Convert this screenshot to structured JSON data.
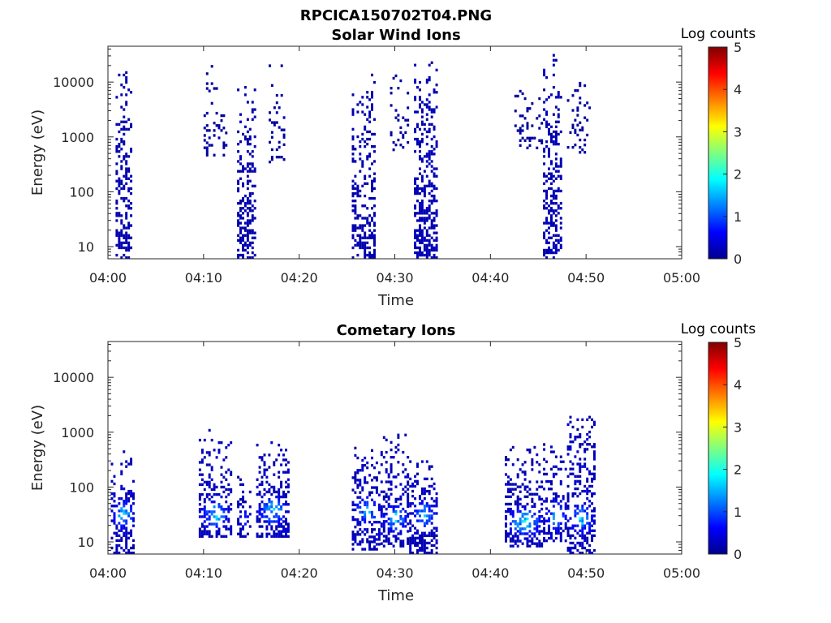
{
  "figure_title": "RPCICA150702T04.PNG",
  "colormap": "jet",
  "chart_data": [
    {
      "type": "heatmap",
      "title": "Solar Wind Ions",
      "xlabel": "Time",
      "ylabel": "Energy (eV)",
      "y_scale": "log",
      "ylim": [
        6,
        45000
      ],
      "xlim_minutes": [
        0,
        60
      ],
      "x_tick_labels": [
        "04:00",
        "04:10",
        "04:20",
        "04:30",
        "04:40",
        "04:50",
        "05:00"
      ],
      "y_tick_labels": [
        "10",
        "100",
        "1000",
        "10000"
      ],
      "colorbar": {
        "label": "Log counts",
        "range": [
          0,
          5
        ],
        "tick_labels": [
          "0",
          "1",
          "2",
          "3",
          "4",
          "5"
        ]
      },
      "bursts": [
        {
          "t_start_min": 0.8,
          "t_end_min": 2.5,
          "e_min": 6,
          "e_max": 15000,
          "peak_log_counts": 0.25,
          "density": 0.55
        },
        {
          "t_start_min": 10.0,
          "t_end_min": 12.3,
          "e_min": 400,
          "e_max": 22000,
          "peak_log_counts": 0.15,
          "density": 0.15
        },
        {
          "t_start_min": 13.5,
          "t_end_min": 15.3,
          "e_min": 6,
          "e_max": 10000,
          "peak_log_counts": 0.25,
          "density": 0.5
        },
        {
          "t_start_min": 16.8,
          "t_end_min": 18.5,
          "e_min": 300,
          "e_max": 20000,
          "peak_log_counts": 0.15,
          "density": 0.2
        },
        {
          "t_start_min": 25.5,
          "t_end_min": 28.0,
          "e_min": 6,
          "e_max": 14000,
          "peak_log_counts": 0.25,
          "density": 0.5
        },
        {
          "t_start_min": 29.5,
          "t_end_min": 31.5,
          "e_min": 500,
          "e_max": 16000,
          "peak_log_counts": 0.15,
          "density": 0.2
        },
        {
          "t_start_min": 32.0,
          "t_end_min": 34.5,
          "e_min": 6,
          "e_max": 28000,
          "peak_log_counts": 0.3,
          "density": 0.55
        },
        {
          "t_start_min": 42.5,
          "t_end_min": 45.5,
          "e_min": 600,
          "e_max": 10000,
          "peak_log_counts": 0.15,
          "density": 0.2
        },
        {
          "t_start_min": 45.5,
          "t_end_min": 47.5,
          "e_min": 6,
          "e_max": 32000,
          "peak_log_counts": 0.3,
          "density": 0.5
        },
        {
          "t_start_min": 48.0,
          "t_end_min": 50.5,
          "e_min": 500,
          "e_max": 11000,
          "peak_log_counts": 0.15,
          "density": 0.2
        }
      ]
    },
    {
      "type": "heatmap",
      "title": "Cometary Ions",
      "xlabel": "Time",
      "ylabel": "Energy (eV)",
      "y_scale": "log",
      "ylim": [
        6,
        45000
      ],
      "xlim_minutes": [
        0,
        60
      ],
      "x_tick_labels": [
        "04:00",
        "04:10",
        "04:20",
        "04:30",
        "04:40",
        "04:50",
        "05:00"
      ],
      "y_tick_labels": [
        "10",
        "100",
        "1000",
        "10000"
      ],
      "colorbar": {
        "label": "Log counts",
        "range": [
          0,
          5
        ],
        "tick_labels": [
          "0",
          "1",
          "2",
          "3",
          "4",
          "5"
        ]
      },
      "bursts": [
        {
          "t_start_min": 0.3,
          "t_end_min": 2.8,
          "e_min": 6,
          "e_max": 450,
          "core_e": 30,
          "peak_log_counts": 1.9,
          "density": 0.5
        },
        {
          "t_start_min": 9.5,
          "t_end_min": 12.8,
          "e_min": 12,
          "e_max": 1100,
          "core_e": 30,
          "peak_log_counts": 1.8,
          "density": 0.5
        },
        {
          "t_start_min": 13.5,
          "t_end_min": 15.0,
          "e_min": 12,
          "e_max": 200,
          "core_e": 25,
          "peak_log_counts": 0.8,
          "density": 0.4
        },
        {
          "t_start_min": 15.5,
          "t_end_min": 18.8,
          "e_min": 12,
          "e_max": 700,
          "core_e": 35,
          "peak_log_counts": 1.9,
          "density": 0.55
        },
        {
          "t_start_min": 25.5,
          "t_end_min": 28.5,
          "e_min": 7,
          "e_max": 600,
          "core_e": 35,
          "peak_log_counts": 1.7,
          "density": 0.55
        },
        {
          "t_start_min": 28.5,
          "t_end_min": 31.5,
          "e_min": 8,
          "e_max": 900,
          "core_e": 25,
          "peak_log_counts": 1.9,
          "density": 0.5
        },
        {
          "t_start_min": 31.5,
          "t_end_min": 34.5,
          "e_min": 6,
          "e_max": 300,
          "core_e": 30,
          "peak_log_counts": 1.6,
          "density": 0.55
        },
        {
          "t_start_min": 41.5,
          "t_end_min": 45.5,
          "e_min": 8,
          "e_max": 550,
          "core_e": 22,
          "peak_log_counts": 2.0,
          "density": 0.55
        },
        {
          "t_start_min": 45.5,
          "t_end_min": 48.0,
          "e_min": 10,
          "e_max": 600,
          "core_e": 28,
          "peak_log_counts": 1.8,
          "density": 0.5
        },
        {
          "t_start_min": 48.0,
          "t_end_min": 50.8,
          "e_min": 6,
          "e_max": 2200,
          "core_e": 25,
          "peak_log_counts": 1.9,
          "density": 0.5
        }
      ]
    }
  ]
}
